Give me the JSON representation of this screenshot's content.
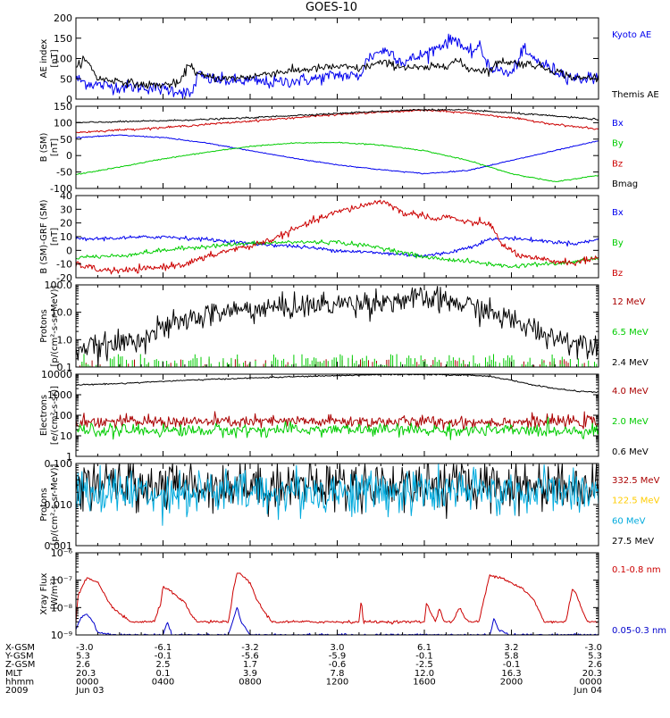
{
  "title": "GOES-10",
  "chart_data": [
    {
      "id": "ae",
      "type": "line",
      "ylabel": [
        "AE index",
        "[nT]"
      ],
      "yscale": "linear",
      "ylim": [
        0,
        200
      ],
      "yticks": [
        0,
        50,
        100,
        150,
        200
      ],
      "ytick_labels": [
        "0",
        "50",
        "100",
        "150",
        "200"
      ],
      "legend": [
        {
          "label": "Kyoto AE",
          "color": "#0000ee"
        },
        {
          "label": "Themis AE",
          "color": "#000000"
        }
      ],
      "series": [
        {
          "name": "Kyoto AE",
          "color": "#0000ee",
          "noise": 8,
          "x": [
            0,
            0.5,
            1,
            2,
            3,
            4,
            4.8,
            5.3,
            5.6,
            6,
            7,
            8,
            9,
            10,
            11,
            12,
            13,
            13.4,
            14,
            14.5,
            15,
            16,
            17,
            17.5,
            18,
            18.5,
            19,
            20,
            20.5,
            21,
            22,
            23,
            24
          ],
          "y": [
            50,
            40,
            35,
            30,
            30,
            25,
            20,
            10,
            60,
            50,
            45,
            45,
            40,
            45,
            50,
            60,
            55,
            100,
            120,
            115,
            90,
            110,
            140,
            150,
            110,
            130,
            80,
            60,
            120,
            100,
            70,
            50,
            55
          ]
        },
        {
          "name": "Themis AE",
          "color": "#000000",
          "noise": 5,
          "x": [
            0,
            0.3,
            0.7,
            1,
            2,
            3,
            4,
            4.8,
            5.2,
            5.6,
            6,
            7,
            8,
            9,
            10,
            11,
            12,
            13,
            14,
            15,
            16,
            17,
            17.5,
            18,
            19,
            19.5,
            20,
            21,
            22,
            23,
            24
          ],
          "y": [
            70,
            100,
            80,
            50,
            45,
            35,
            35,
            40,
            90,
            60,
            55,
            50,
            55,
            65,
            70,
            75,
            80,
            75,
            90,
            80,
            75,
            85,
            95,
            75,
            70,
            95,
            90,
            85,
            70,
            50,
            55
          ]
        }
      ]
    },
    {
      "id": "bfield",
      "type": "line",
      "ylabel": [
        "B (SM)",
        "[nT]"
      ],
      "yscale": "linear",
      "ylim": [
        -100,
        150
      ],
      "yticks": [
        -100,
        -50,
        0,
        50,
        100,
        150
      ],
      "ytick_labels": [
        "-100",
        "-50",
        "0",
        "50",
        "100",
        "150"
      ],
      "legend": [
        {
          "label": "Bx",
          "color": "#0000ee"
        },
        {
          "label": "By",
          "color": "#00cc00"
        },
        {
          "label": "Bz",
          "color": "#cc0000"
        },
        {
          "label": "Bmag",
          "color": "#000000"
        }
      ],
      "series": [
        {
          "name": "Bx",
          "color": "#0000ee",
          "noise": 0.8,
          "x": [
            0,
            2,
            4,
            6,
            8,
            10,
            12,
            14,
            16,
            18,
            20,
            22,
            24
          ],
          "y": [
            55,
            62,
            55,
            38,
            15,
            -8,
            -28,
            -43,
            -55,
            -45,
            -15,
            15,
            45
          ]
        },
        {
          "name": "By",
          "color": "#00cc00",
          "noise": 0.8,
          "x": [
            0,
            2,
            4,
            6,
            8,
            10,
            12,
            14,
            16,
            18,
            20,
            22,
            24
          ],
          "y": [
            -58,
            -35,
            -10,
            10,
            28,
            38,
            40,
            32,
            15,
            -15,
            -55,
            -80,
            -60
          ]
        },
        {
          "name": "Bz",
          "color": "#cc0000",
          "noise": 1.5,
          "x": [
            0,
            2,
            4,
            6,
            8,
            10,
            12,
            14,
            16,
            18,
            20,
            22,
            24
          ],
          "y": [
            70,
            78,
            85,
            95,
            105,
            115,
            125,
            132,
            138,
            130,
            115,
            95,
            80
          ]
        },
        {
          "name": "Bmag",
          "color": "#000000",
          "noise": 1.2,
          "x": [
            0,
            2,
            4,
            6,
            8,
            10,
            12,
            14,
            16,
            18,
            20,
            22,
            24
          ],
          "y": [
            100,
            103,
            106,
            110,
            115,
            122,
            128,
            135,
            140,
            138,
            130,
            120,
            110
          ]
        }
      ]
    },
    {
      "id": "bdiff",
      "type": "line",
      "ylabel": [
        "B (SM)-GRF (SM)",
        "[nT]"
      ],
      "yscale": "linear",
      "ylim": [
        -20,
        40
      ],
      "yticks": [
        -20,
        -10,
        0,
        10,
        20,
        30,
        40
      ],
      "ytick_labels": [
        "-20",
        "-10",
        "0",
        "10",
        "20",
        "30",
        "40"
      ],
      "legend": [
        {
          "label": "Bx",
          "color": "#0000ee"
        },
        {
          "label": "By",
          "color": "#00cc00"
        },
        {
          "label": "Bz",
          "color": "#cc0000"
        }
      ],
      "series": [
        {
          "name": "Bx",
          "color": "#0000ee",
          "noise": 0.7,
          "x": [
            0,
            2,
            4,
            5,
            6,
            8,
            10,
            12,
            14,
            16,
            17,
            18,
            19,
            20,
            22,
            23,
            24
          ],
          "y": [
            8,
            9,
            10,
            9,
            8,
            5,
            3,
            0,
            -2,
            -4,
            -2,
            2,
            8,
            9,
            6,
            5,
            8
          ]
        },
        {
          "name": "By",
          "color": "#00cc00",
          "noise": 0.8,
          "x": [
            0,
            2,
            4,
            6,
            8,
            10,
            12,
            14,
            16,
            18,
            19,
            20,
            21,
            22,
            23,
            24
          ],
          "y": [
            -5,
            -4,
            0,
            3,
            5,
            6,
            6,
            2,
            -5,
            -8,
            -10,
            -12,
            -10,
            -10,
            -8,
            -6
          ]
        },
        {
          "name": "Bz",
          "color": "#cc0000",
          "noise": 1.2,
          "x": [
            0,
            1,
            2,
            3,
            4,
            5,
            6,
            7,
            8,
            9,
            10,
            11,
            12,
            13,
            14,
            14.5,
            15,
            16,
            16.5,
            17,
            18,
            19,
            19.5,
            20,
            20.5,
            21,
            22,
            23,
            24
          ],
          "y": [
            -10,
            -14,
            -15,
            -14,
            -12,
            -10,
            -5,
            0,
            3,
            8,
            15,
            22,
            28,
            32,
            36,
            33,
            27,
            26,
            22,
            25,
            20,
            20,
            5,
            0,
            -5,
            -6,
            -8,
            -9,
            -5
          ]
        }
      ]
    },
    {
      "id": "protons_low",
      "type": "line",
      "ylabel": [
        "Protons",
        "[p/(cm²-s-sr-MeV)]"
      ],
      "yscale": "log",
      "ylim": [
        0.1,
        100
      ],
      "yticks": [
        0.1,
        1,
        10,
        100
      ],
      "ytick_labels": [
        "0.1",
        "1.0",
        "10.0",
        "100.0"
      ],
      "legend": [
        {
          "label": "12 MeV",
          "color": "#aa0000"
        },
        {
          "label": "6.5 MeV",
          "color": "#00cc00"
        },
        {
          "label": "2.4 MeV",
          "color": "#000000"
        }
      ],
      "series": [
        {
          "name": "12 MeV",
          "color": "#aa0000",
          "style": "spikes",
          "base": 0.1,
          "peak": 0.2,
          "density": 0.35
        },
        {
          "name": "6.5 MeV",
          "color": "#00cc00",
          "style": "spikes",
          "base": 0.1,
          "peak": 0.3,
          "density": 0.6
        },
        {
          "name": "2.4 MeV",
          "color": "#000000",
          "noise": 0.45,
          "x": [
            0,
            1,
            2,
            3,
            4,
            5,
            6,
            7,
            8,
            9,
            10,
            11,
            12,
            13,
            14,
            15,
            16,
            17,
            18,
            19,
            20,
            21,
            22,
            23,
            24
          ],
          "y": [
            0.5,
            0.5,
            0.7,
            1.2,
            2.5,
            5,
            8,
            11,
            13,
            14,
            16,
            18,
            20,
            22,
            25,
            28,
            30,
            25,
            18,
            10,
            5,
            2.5,
            1.2,
            0.8,
            0.7
          ]
        }
      ]
    },
    {
      "id": "electrons",
      "type": "line",
      "ylabel": [
        "Electrons",
        "[e/(cm²-s-sr)]"
      ],
      "yscale": "log",
      "ylim": [
        1,
        10000
      ],
      "yticks": [
        1,
        10,
        100,
        1000,
        10000
      ],
      "ytick_labels": [
        "1",
        "10",
        "100",
        "1000",
        "10000"
      ],
      "legend": [
        {
          "label": "4.0 MeV",
          "color": "#aa0000"
        },
        {
          "label": "2.0 MeV",
          "color": "#00cc00"
        },
        {
          "label": "0.6 MeV",
          "color": "#000000"
        }
      ],
      "series": [
        {
          "name": "4.0 MeV",
          "color": "#aa0000",
          "noise": 0.3,
          "x": [
            0,
            6,
            12,
            18,
            24
          ],
          "y": [
            50,
            48,
            50,
            47,
            50
          ]
        },
        {
          "name": "2.0 MeV",
          "color": "#00cc00",
          "noise": 0.3,
          "x": [
            0,
            6,
            12,
            18,
            24
          ],
          "y": [
            18,
            18,
            20,
            18,
            18
          ]
        },
        {
          "name": "0.6 MeV",
          "color": "#000000",
          "noise": 0.03,
          "x": [
            0,
            2,
            4,
            6,
            8,
            10,
            12,
            14,
            16,
            18,
            19,
            20,
            21,
            22,
            23,
            24
          ],
          "y": [
            3000,
            3500,
            4500,
            5500,
            6500,
            7500,
            8500,
            9500,
            9500,
            9000,
            8000,
            5000,
            3000,
            2000,
            1500,
            1300
          ]
        }
      ]
    },
    {
      "id": "protons_high",
      "type": "line",
      "ylabel": [
        "Protons",
        "[p/(cm²-s-sr-MeV)]"
      ],
      "yscale": "log",
      "ylim": [
        0.001,
        0.1
      ],
      "yticks": [
        0.001,
        0.01,
        0.1
      ],
      "ytick_labels": [
        "0.001",
        "0.010",
        "0.100"
      ],
      "legend": [
        {
          "label": "332.5 MeV",
          "color": "#aa0000"
        },
        {
          "label": "122.5 MeV",
          "color": "#ffcc00"
        },
        {
          "label": "60 MeV",
          "color": "#00aadd"
        },
        {
          "label": "27.5 MeV",
          "color": "#000000"
        }
      ],
      "series": [
        {
          "name": "27.5 MeV",
          "color": "#000000",
          "noise": 0.6,
          "x": [
            0,
            6,
            12,
            18,
            24
          ],
          "y": [
            0.03,
            0.03,
            0.03,
            0.03,
            0.03
          ]
        },
        {
          "name": "60 MeV",
          "color": "#00aadd",
          "noise": 0.55,
          "x": [
            0,
            6,
            12,
            18,
            24
          ],
          "y": [
            0.02,
            0.02,
            0.02,
            0.02,
            0.02
          ]
        }
      ]
    },
    {
      "id": "xray",
      "type": "line",
      "ylabel": [
        "Xray Flux",
        "[W/m²]"
      ],
      "yscale": "log",
      "ylim": [
        1e-09,
        1e-06
      ],
      "yticks": [
        1e-09,
        1e-08,
        1e-07,
        1e-06
      ],
      "ytick_labels": [
        "10⁻⁹",
        "10⁻⁸",
        "10⁻⁷",
        "10⁻⁶"
      ],
      "legend": [
        {
          "label": "0.1-0.8 nm",
          "color": "#cc0000"
        },
        {
          "label": "0.05-0.3 nm",
          "color": "#0000cc"
        }
      ],
      "series": [
        {
          "name": "0.1-0.8 nm",
          "color": "#cc0000",
          "noise": 0.05,
          "x": [
            0,
            0.1,
            0.5,
            1.0,
            1.3,
            1.5,
            2.0,
            2.5,
            3.0,
            3.3,
            3.6,
            3.9,
            4.0,
            4.2,
            4.5,
            5.0,
            5.3,
            5.6,
            6.0,
            6.3,
            7.0,
            7.2,
            7.4,
            8.0,
            8.3,
            8.6,
            9.0,
            9.3,
            10.0,
            12.0,
            13.0,
            13.1,
            13.2,
            15.0,
            16.0,
            16.1,
            16.5,
            16.7,
            16.9,
            17.0,
            17.3,
            17.6,
            18.0,
            18.5,
            19.0,
            19.5,
            20.0,
            20.5,
            21.0,
            21.2,
            21.5,
            22.0,
            22.5,
            22.8,
            23.0,
            23.2,
            23.5,
            24.0
          ],
          "y": [
            3e-09,
            3e-08,
            1.2e-07,
            8e-08,
            3e-08,
            1.5e-08,
            6e-09,
            3e-09,
            3e-09,
            3e-09,
            3e-09,
            1.5e-08,
            6e-08,
            5e-08,
            3e-08,
            1.5e-08,
            5e-09,
            3e-09,
            3e-09,
            3e-09,
            3e-09,
            3e-08,
            2e-07,
            8e-08,
            2e-08,
            8e-09,
            3e-09,
            3e-09,
            3e-09,
            3e-09,
            3e-09,
            2e-08,
            3e-09,
            3e-09,
            3e-09,
            1.5e-08,
            3e-09,
            1e-08,
            3e-09,
            3e-09,
            3e-09,
            1e-08,
            3e-09,
            3e-09,
            1.5e-07,
            1.3e-07,
            8e-08,
            5e-08,
            2e-08,
            1e-08,
            3e-09,
            3e-09,
            3e-09,
            5e-08,
            3e-08,
            1e-08,
            3e-09,
            3e-09
          ]
        },
        {
          "name": "0.05-0.3 nm",
          "color": "#0000cc",
          "noise": 0.04,
          "x": [
            0,
            0.2,
            0.5,
            0.8,
            1.0,
            2.0,
            3.0,
            4.0,
            4.2,
            4.4,
            5.0,
            7.0,
            7.4,
            7.6,
            8.0,
            12.0,
            16.0,
            18.0,
            19.0,
            19.2,
            19.4,
            20.0,
            21.0,
            24.0
          ],
          "y": [
            1.5e-09,
            4e-09,
            6e-09,
            3e-09,
            1.2e-09,
            1e-09,
            1e-09,
            1e-09,
            3e-09,
            1e-09,
            1e-09,
            1e-09,
            1e-08,
            3e-09,
            1e-09,
            1e-09,
            1e-09,
            1e-09,
            1e-09,
            4e-09,
            1.5e-09,
            1e-09,
            1e-09,
            1e-09
          ]
        }
      ]
    }
  ],
  "xaxis": {
    "range": [
      0,
      24
    ],
    "positions": [
      0,
      4,
      8,
      12,
      16,
      20,
      24
    ],
    "rows": [
      {
        "label": "X-GSM",
        "values": [
          "-3.0",
          "-6.1",
          "-3.2",
          "3.0",
          "6.1",
          "3.2",
          "-3.0"
        ]
      },
      {
        "label": "Y-GSM",
        "values": [
          "5.3",
          "-0.1",
          "-5.6",
          "-5.9",
          "-0.1",
          "5.8",
          "5.3"
        ]
      },
      {
        "label": "Z-GSM",
        "values": [
          "2.6",
          "2.5",
          "1.7",
          "-0.6",
          "-2.5",
          "-0.1",
          "2.6"
        ]
      },
      {
        "label": "MLT",
        "values": [
          "20.3",
          "0.1",
          "3.9",
          "7.8",
          "12.0",
          "16.3",
          "20.3"
        ]
      },
      {
        "label": "hhmm",
        "values": [
          "0000",
          "0400",
          "0800",
          "1200",
          "1600",
          "2000",
          "0000"
        ]
      },
      {
        "label": "2009",
        "values": [
          "Jun 03",
          "",
          "",
          "",
          "",
          "",
          "Jun 04"
        ]
      }
    ]
  }
}
